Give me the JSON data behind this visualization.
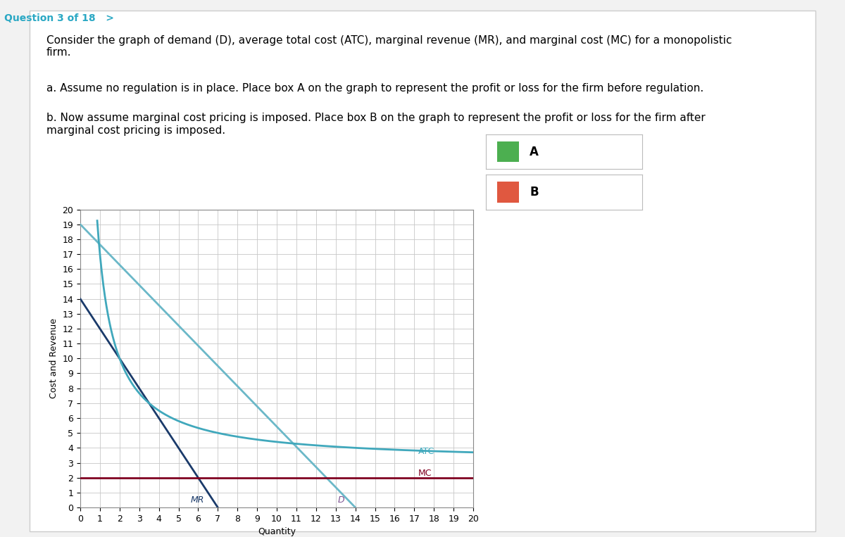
{
  "header_text": "Question 3 of 18",
  "desc_text": "Consider the graph of demand (D), average total cost (ATC), marginal revenue (MR), and marginal cost (MC) for a monopolistic\nfirm.",
  "part_a_text": "a. Assume no regulation is in place. Place box A on the graph to represent the profit or loss for the firm before regulation.",
  "part_b_text": "b. Now assume marginal cost pricing is imposed. Place box B on the graph to represent the profit or loss for the firm after\nmarginal cost pricing is imposed.",
  "xlabel": "Quantity",
  "ylabel": "Cost and Revenue",
  "xmin": 0,
  "xmax": 20,
  "ymin": 0,
  "ymax": 20,
  "mc_value": 2.0,
  "ATC_k": 14,
  "atc_asymptote": 3.0,
  "D_color": "#6BB8C8",
  "MR_color": "#1A3A6A",
  "ATC_color": "#40A8BC",
  "MC_color": "#800020",
  "D_label_color": "#7B5090",
  "legend_A_color": "#4CAF50",
  "legend_B_color": "#E05840",
  "background_color": "#F2F2F2",
  "panel_color": "#FFFFFF",
  "grid_color": "#C8C8C8",
  "tick_fontsize": 9,
  "axis_label_fontsize": 9,
  "header_color": "#2AA8C4",
  "text_fontsize": 11
}
